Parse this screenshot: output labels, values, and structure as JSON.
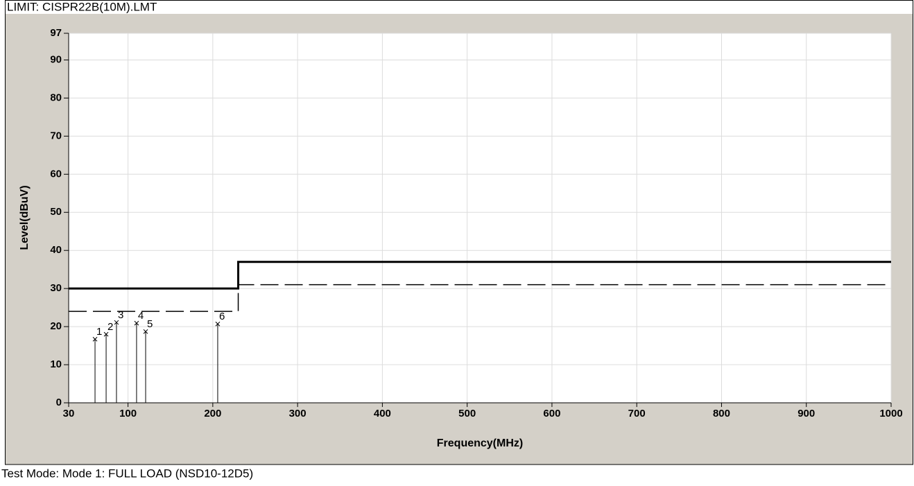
{
  "chart_data": {
    "type": "line",
    "title": "LIMIT: CISPR22B(10M).LMT",
    "footer": "Test Mode: Mode 1: FULL LOAD (NSD10-12D5)",
    "xlabel": "Frequency(MHz)",
    "ylabel": "Level(dBuV)",
    "xlim": [
      30,
      1000
    ],
    "xticks": [
      30,
      100,
      200,
      300,
      400,
      500,
      600,
      700,
      800,
      900,
      1000
    ],
    "ylim": [
      0,
      97
    ],
    "yticks": [
      0,
      10,
      20,
      30,
      40,
      50,
      60,
      70,
      80,
      90,
      97
    ],
    "grid": true,
    "series": [
      {
        "color": "#000000",
        "style": "solid",
        "x": [
          30,
          230,
          230,
          1000
        ],
        "values": [
          30,
          30,
          37,
          37
        ]
      },
      {
        "color": "#000000",
        "style": "dashed",
        "x": [
          30,
          230,
          230,
          1000
        ],
        "values": [
          24,
          24,
          31,
          31
        ]
      }
    ],
    "markers": {
      "color": "#000000",
      "labels": [
        "1",
        "2",
        "3",
        "4",
        "5",
        "6"
      ],
      "x": [
        61.1,
        74.2,
        86.4,
        110.1,
        120.8,
        205.8
      ],
      "values": [
        16.7,
        18.0,
        21.1,
        20.9,
        18.7,
        20.7
      ]
    }
  }
}
